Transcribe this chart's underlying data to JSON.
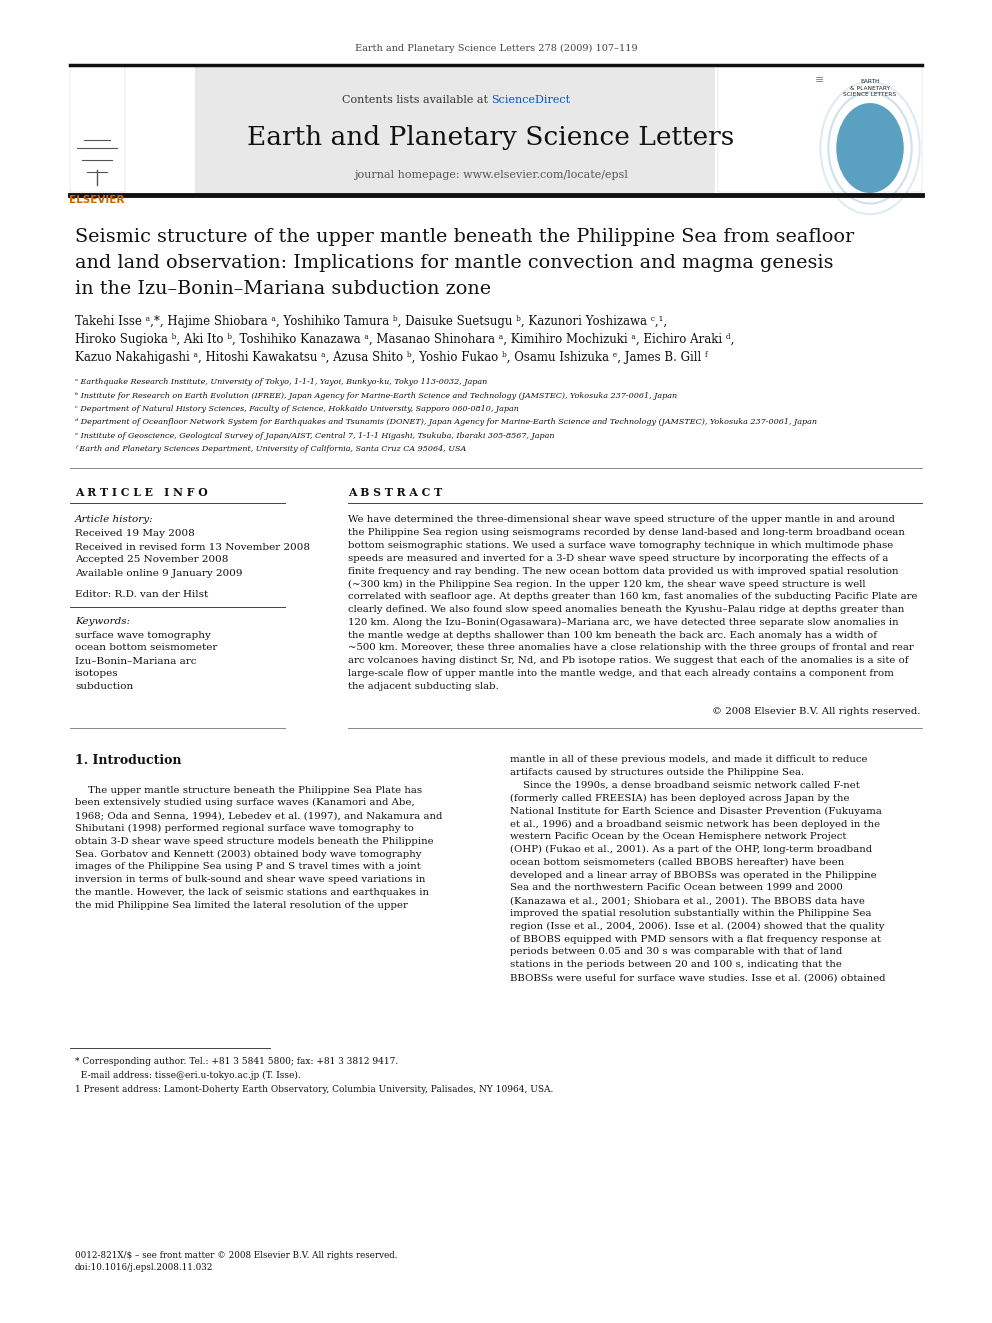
{
  "page_width": 9.92,
  "page_height": 13.23,
  "bg_color": "#ffffff",
  "journal_header_text": "Earth and Planetary Science Letters 278 (2009) 107–119",
  "journal_name": "Earth and Planetary Science Letters",
  "journal_homepage": "journal homepage: www.elsevier.com/locate/epsl",
  "contents_text": "Contents lists available at ScienceDirect",
  "sciencedirect_color": "#0055cc",
  "header_bg": "#e8e8e8",
  "paper_title_line1": "Seismic structure of the upper mantle beneath the Philippine Sea from seafloor",
  "paper_title_line2": "and land observation: Implications for mantle convection and magma genesis",
  "paper_title_line3": "in the Izu–Bonin–Mariana subduction zone",
  "authors_line1": "Takehi Isse ᵃ,*, Hajime Shiobara ᵃ, Yoshihiko Tamura ᵇ, Daisuke Suetsugu ᵇ, Kazunori Yoshizawa ᶜ,¹,",
  "authors_line2": "Hiroko Sugioka ᵇ, Aki Ito ᵇ, Toshihiko Kanazawa ᵃ, Masanao Shinohara ᵃ, Kimihiro Mochizuki ᵃ, Eichiro Araki ᵈ,",
  "authors_line3": "Kazuo Nakahigashi ᵃ, Hitoshi Kawakatsu ᵃ, Azusa Shito ᵇ, Yoshio Fukao ᵇ, Osamu Ishizuka ᵉ, James B. Gill ᶠ",
  "affil_a": "ᵃ Earthquake Research Institute, University of Tokyo, 1-1-1, Yayoi, Bunkyo-ku, Tokyo 113-0032, Japan",
  "affil_b": "ᵇ Institute for Research on Earth Evolution (IFREE), Japan Agency for Marine-Earth Science and Technology (JAMSTEC), Yokosuka 237-0061, Japan",
  "affil_c": "ᶜ Department of Natural History Sciences, Faculty of Science, Hokkaido University, Sapporo 060-0810, Japan",
  "affil_d": "ᵈ Department of Oceanfloor Network System for Earthquakes and Tsunamis (DONET), Japan Agency for Marine-Earth Science and Technology (JAMSTEC), Yokosuka 237-0061, Japan",
  "affil_e": "ᵉ Institute of Geoscience, Geological Survey of Japan/AIST, Central 7, 1-1-1 Higashi, Tsukuba, Ibaraki 305-8567, Japan",
  "affil_f": "ᶠ Earth and Planetary Sciences Department, University of California, Santa Cruz CA 95064, USA",
  "article_info_title": "A R T I C L E   I N F O",
  "abstract_title": "A B S T R A C T",
  "article_history_label": "Article history:",
  "received": "Received 19 May 2008",
  "revised": "Received in revised form 13 November 2008",
  "accepted": "Accepted 25 November 2008",
  "available": "Available online 9 January 2009",
  "editor_label": "Editor: R.D. van der Hilst",
  "keywords_label": "Keywords:",
  "keywords": [
    "surface wave tomography",
    "ocean bottom seismometer",
    "Izu–Bonin–Mariana arc",
    "isotopes",
    "subduction"
  ],
  "copyright": "© 2008 Elsevier B.V. All rights reserved.",
  "intro_title": "1. Introduction",
  "abstract_lines": [
    "We have determined the three-dimensional shear wave speed structure of the upper mantle in and around",
    "the Philippine Sea region using seismograms recorded by dense land-based and long-term broadband ocean",
    "bottom seismographic stations. We used a surface wave tomography technique in which multimode phase",
    "speeds are measured and inverted for a 3-D shear wave speed structure by incorporating the effects of a",
    "finite frequency and ray bending. The new ocean bottom data provided us with improved spatial resolution",
    "(~300 km) in the Philippine Sea region. In the upper 120 km, the shear wave speed structure is well",
    "correlated with seafloor age. At depths greater than 160 km, fast anomalies of the subducting Pacific Plate are",
    "clearly defined. We also found slow speed anomalies beneath the Kyushu–Palau ridge at depths greater than",
    "120 km. Along the Izu–Bonin(Ogasawara)–Mariana arc, we have detected three separate slow anomalies in",
    "the mantle wedge at depths shallower than 100 km beneath the back arc. Each anomaly has a width of",
    "~500 km. Moreover, these three anomalies have a close relationship with the three groups of frontal and rear",
    "arc volcanoes having distinct Sr, Nd, and Pb isotope ratios. We suggest that each of the anomalies is a site of",
    "large-scale flow of upper mantle into the mantle wedge, and that each already contains a component from",
    "the adjacent subducting slab."
  ],
  "intro_left_lines": [
    "    The upper mantle structure beneath the Philippine Sea Plate has",
    "been extensively studied using surface waves (Kanamori and Abe,",
    "1968; Oda and Senna, 1994), Lebedev et al. (1997), and Nakamura and",
    "Shibutani (1998) performed regional surface wave tomography to",
    "obtain 3-D shear wave speed structure models beneath the Philippine",
    "Sea. Gorbatov and Kennett (2003) obtained body wave tomography",
    "images of the Philippine Sea using P and S travel times with a joint",
    "inversion in terms of bulk-sound and shear wave speed variations in",
    "the mantle. However, the lack of seismic stations and earthquakes in",
    "the mid Philippine Sea limited the lateral resolution of the upper"
  ],
  "intro_right_lines": [
    "mantle in all of these previous models, and made it difficult to reduce",
    "artifacts caused by structures outside the Philippine Sea.",
    "    Since the 1990s, a dense broadband seismic network called F-net",
    "(formerly called FREESIA) has been deployed across Japan by the",
    "National Institute for Earth Science and Disaster Prevention (Fukuyama",
    "et al., 1996) and a broadband seismic network has been deployed in the",
    "western Pacific Ocean by the Ocean Hemisphere network Project",
    "(OHP) (Fukao et al., 2001). As a part of the OHP, long-term broadband",
    "ocean bottom seismometers (called BBOBS hereafter) have been",
    "developed and a linear array of BBOBSs was operated in the Philippine",
    "Sea and the northwestern Pacific Ocean between 1999 and 2000",
    "(Kanazawa et al., 2001; Shiobara et al., 2001). The BBOBS data have",
    "improved the spatial resolution substantially within the Philippine Sea",
    "region (Isse et al., 2004, 2006). Isse et al. (2004) showed that the quality",
    "of BBOBS equipped with PMD sensors with a flat frequency response at",
    "periods between 0.05 and 30 s was comparable with that of land",
    "stations in the periods between 20 and 100 s, indicating that the",
    "BBOBSs were useful for surface wave studies. Isse et al. (2006) obtained"
  ],
  "footnote1": "* Corresponding author. Tel.: +81 3 5841 5800; fax: +81 3 3812 9417.",
  "footnote2": "  E-mail address: tisse@eri.u-tokyo.ac.jp (T. Isse).",
  "footnote3": "1 Present address: Lamont-Doherty Earth Observatory, Columbia University, Palisades, NY 10964, USA.",
  "bottom_line1": "0012-821X/$ – see front matter © 2008 Elsevier B.V. All rights reserved.",
  "bottom_line2": "doi:10.1016/j.epsl.2008.11.032"
}
